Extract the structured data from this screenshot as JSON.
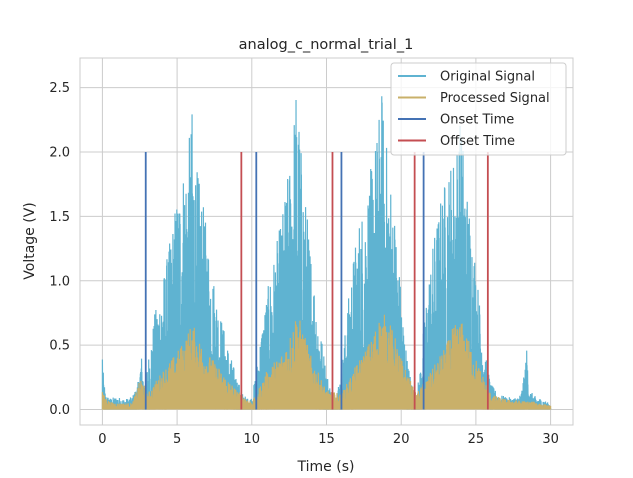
{
  "chart_data": {
    "type": "line",
    "title": "analog_c_normal_trial_1",
    "xlabel": "Time (s)",
    "ylabel": "Voltage (V)",
    "xlim": [
      -1.5,
      31.5
    ],
    "ylim": [
      -0.12,
      2.73
    ],
    "xticks": [
      0,
      5,
      10,
      15,
      20,
      25,
      30
    ],
    "yticks": [
      0.0,
      0.5,
      1.0,
      1.5,
      2.0,
      2.5
    ],
    "xtick_labels": [
      "0",
      "5",
      "10",
      "15",
      "20",
      "25",
      "30"
    ],
    "ytick_labels": [
      "0.0",
      "0.5",
      "1.0",
      "1.5",
      "2.0",
      "2.5"
    ],
    "grid": true,
    "legend_position": "top-right",
    "colors": {
      "original": "#5fb3d1",
      "processed": "#c9b06a",
      "onset": "#4472b4",
      "offset": "#c44e52"
    },
    "series": [
      {
        "name": "Original Signal",
        "type": "envelope",
        "t": [
          0.0,
          0.05,
          0.2,
          0.5,
          1.0,
          1.5,
          2.0,
          2.4,
          2.6,
          2.8,
          3.0,
          3.5,
          4.0,
          4.5,
          5.0,
          5.5,
          5.8,
          6.0,
          6.3,
          6.6,
          7.0,
          7.5,
          8.0,
          8.5,
          9.0,
          9.4,
          9.8,
          10.0,
          10.3,
          10.6,
          11.0,
          11.5,
          12.0,
          12.5,
          12.8,
          13.0,
          13.3,
          13.6,
          14.0,
          14.5,
          15.0,
          15.3,
          15.6,
          16.0,
          16.4,
          16.8,
          17.2,
          17.6,
          18.0,
          18.4,
          18.7,
          19.0,
          19.3,
          19.7,
          20.0,
          20.4,
          20.8,
          21.0,
          21.3,
          21.6,
          22.0,
          22.4,
          22.8,
          23.2,
          23.6,
          24.0,
          24.4,
          24.8,
          25.2,
          25.6,
          26.0,
          26.5,
          27.0,
          27.5,
          28.0,
          28.2,
          28.4,
          28.6,
          29.0,
          29.5,
          30.0
        ],
        "peak": [
          0.55,
          0.3,
          0.12,
          0.09,
          0.1,
          0.08,
          0.1,
          0.22,
          0.45,
          0.2,
          0.35,
          0.75,
          1.0,
          1.3,
          1.7,
          1.95,
          2.1,
          2.35,
          1.9,
          1.7,
          1.4,
          1.0,
          0.7,
          0.45,
          0.25,
          0.12,
          0.08,
          0.1,
          0.3,
          0.6,
          0.9,
          1.2,
          1.5,
          1.9,
          2.3,
          2.6,
          2.05,
          1.65,
          1.2,
          0.7,
          0.3,
          0.15,
          0.1,
          0.3,
          0.8,
          1.2,
          1.5,
          1.65,
          1.9,
          2.2,
          2.5,
          2.1,
          1.8,
          1.4,
          0.9,
          0.4,
          0.15,
          0.1,
          0.35,
          0.8,
          1.2,
          1.5,
          1.75,
          1.9,
          2.05,
          2.3,
          1.75,
          1.4,
          0.9,
          0.45,
          0.2,
          0.12,
          0.1,
          0.09,
          0.12,
          0.25,
          0.48,
          0.15,
          0.1,
          0.08,
          0.04
        ]
      },
      {
        "name": "Processed Signal",
        "type": "envelope",
        "t": [
          0.0,
          0.05,
          0.5,
          1.0,
          2.0,
          2.6,
          3.0,
          4.0,
          5.0,
          5.5,
          6.0,
          6.5,
          7.0,
          8.0,
          9.0,
          10.0,
          10.3,
          11.0,
          12.0,
          12.6,
          13.0,
          13.5,
          14.0,
          15.0,
          16.0,
          17.0,
          18.0,
          18.5,
          19.0,
          19.5,
          20.0,
          21.0,
          22.0,
          23.0,
          23.5,
          24.0,
          24.5,
          25.0,
          26.0,
          27.0,
          28.0,
          29.0,
          30.0
        ],
        "peak": [
          0.16,
          0.12,
          0.06,
          0.05,
          0.05,
          0.26,
          0.12,
          0.3,
          0.45,
          0.55,
          0.68,
          0.55,
          0.45,
          0.3,
          0.15,
          0.06,
          0.12,
          0.3,
          0.45,
          0.6,
          0.78,
          0.6,
          0.4,
          0.15,
          0.12,
          0.35,
          0.55,
          0.72,
          0.75,
          0.6,
          0.4,
          0.12,
          0.3,
          0.5,
          0.65,
          0.7,
          0.55,
          0.4,
          0.12,
          0.08,
          0.07,
          0.06,
          0.03
        ]
      },
      {
        "name": "Onset Time",
        "type": "vlines",
        "x": [
          2.9,
          10.3,
          16.0,
          21.5
        ],
        "y_top": 2.0
      },
      {
        "name": "Offset Time",
        "type": "vlines",
        "x": [
          9.3,
          15.4,
          20.9,
          25.8
        ],
        "y_top": 2.0
      }
    ]
  }
}
